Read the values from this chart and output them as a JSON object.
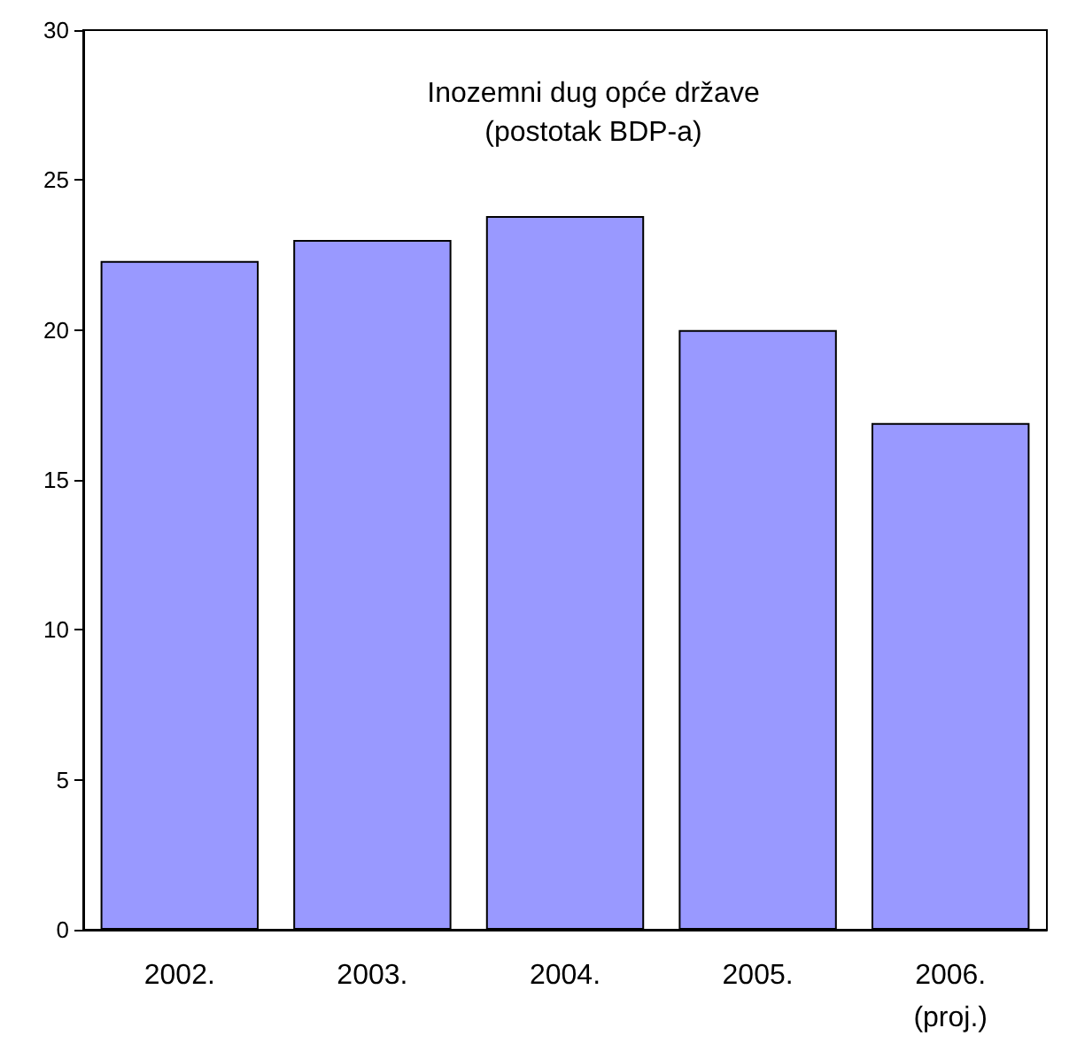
{
  "chart_data": {
    "type": "bar",
    "title": "Inozemni dug opće države",
    "subtitle": "(postotak BDP-a)",
    "categories": [
      "2002.",
      "2003.",
      "2004.",
      "2005.",
      "2006.\n(proj.)"
    ],
    "values": [
      22.3,
      23.0,
      23.8,
      20.0,
      16.9
    ],
    "color": "#9999ff",
    "ylim": [
      0,
      30
    ],
    "yticks": [
      0,
      5,
      10,
      15,
      20,
      25,
      30
    ],
    "grid": false
  }
}
